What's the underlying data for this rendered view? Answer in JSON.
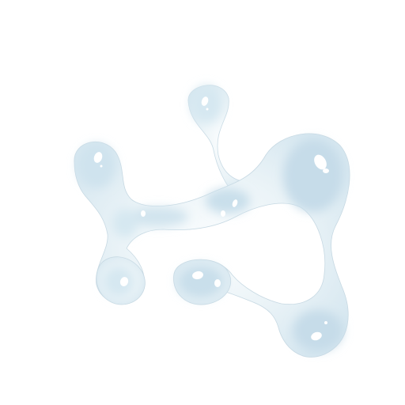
{
  "scene": {
    "subject": "liquid-splash-blob",
    "colors": {
      "background": "#ffffff",
      "fill_light": "#eef5f8",
      "fill_mid": "#d7e8f1",
      "fill_dark": "#c3dbe8",
      "outline": "#c7d9e3",
      "highlight": "#ffffff"
    }
  }
}
